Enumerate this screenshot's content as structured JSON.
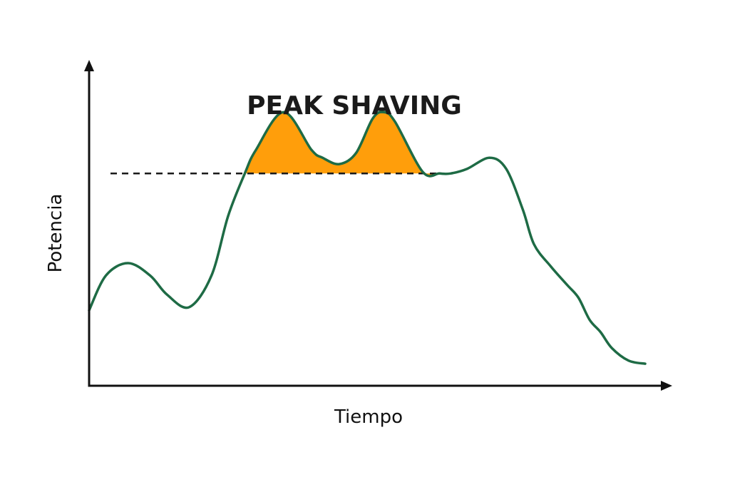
{
  "chart_data": {
    "type": "area",
    "title": "PEAK SHAVING",
    "xlabel": "Tiempo",
    "ylabel": "Potencia",
    "xlim": [
      0,
      100
    ],
    "ylim": [
      0,
      100
    ],
    "grid": false,
    "legend": "none",
    "threshold": 67.5,
    "series": [
      {
        "role": "demand",
        "color": "#1e6b45",
        "x": [
          0,
          3,
          7,
          11,
          14,
          18,
          22,
          25,
          28,
          30,
          35,
          40,
          42,
          45,
          48,
          51,
          53,
          55,
          60,
          63,
          65,
          68,
          72,
          75,
          78,
          80,
          83,
          86,
          88,
          90,
          92,
          94,
          97,
          100
        ],
        "y": [
          24,
          35,
          39,
          35,
          29,
          25,
          35,
          54,
          67.5,
          75,
          87,
          75,
          72.5,
          70.5,
          74,
          85,
          87,
          84,
          68,
          67.5,
          67.5,
          69,
          72.5,
          69,
          56,
          45,
          38,
          32,
          28,
          21,
          17,
          12,
          8,
          7
        ],
        "peak_x": [
          28,
          30,
          35,
          40,
          42,
          45,
          48,
          51,
          53,
          55,
          60,
          63
        ]
      }
    ],
    "colors": {
      "demand": "#1e6b45",
      "shaved": "#ff9e0b",
      "threshold": "#1a1a1a",
      "axis": "#111111"
    }
  }
}
